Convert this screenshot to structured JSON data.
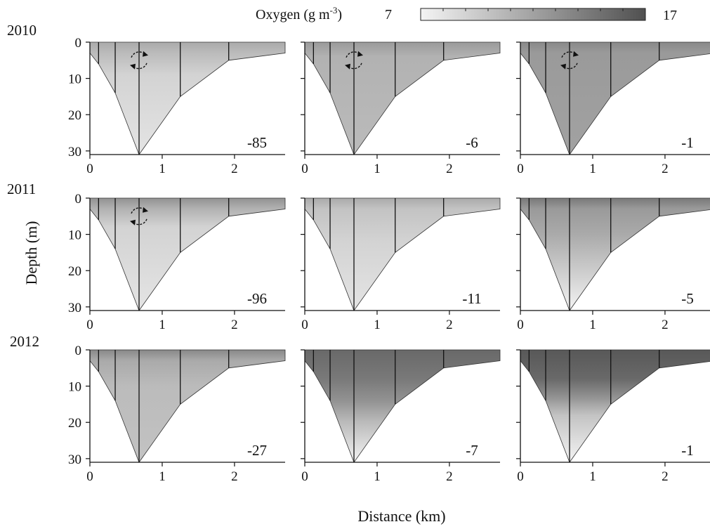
{
  "chart_data": {
    "type": "heatmap",
    "legend": {
      "title": "Oxygen (g m",
      "title_sup": "-3",
      "title_close": ")",
      "min_label": "7",
      "max_label": "17",
      "min": 7,
      "max": 17,
      "color_min": "#f4f4f4",
      "color_max": "#505050"
    },
    "xlabel": "Distance (km)",
    "ylabel": "Depth (m)",
    "xlim": [
      0,
      2.7
    ],
    "ylim": [
      0,
      31
    ],
    "x_ticks": [
      "0",
      "1",
      "2"
    ],
    "y_ticks": [
      "0",
      "10",
      "20",
      "30"
    ],
    "lake_profile": {
      "distance_km": [
        0,
        0.12,
        0.35,
        0.68,
        1.25,
        1.92,
        2.7
      ],
      "depth_m": [
        3,
        6,
        14,
        31,
        15,
        5,
        3
      ]
    },
    "years": [
      "2010",
      "2011",
      "2012"
    ],
    "panels": [
      {
        "year": "2010",
        "annotation": "-85",
        "mixing_symbol": true,
        "layers": [
          [
            0,
            11.5
          ],
          [
            3,
            10.5
          ],
          [
            9,
            9
          ],
          [
            31,
            8
          ]
        ]
      },
      {
        "year": "2010",
        "annotation": "-6",
        "mixing_symbol": true,
        "layers": [
          [
            0,
            12.5
          ],
          [
            4,
            11
          ],
          [
            31,
            10.5
          ]
        ]
      },
      {
        "year": "2010",
        "annotation": "-1",
        "mixing_symbol": true,
        "layers": [
          [
            0,
            13.5
          ],
          [
            3,
            12.5
          ],
          [
            31,
            12
          ]
        ]
      },
      {
        "year": "2011",
        "annotation": "-96",
        "mixing_symbol": true,
        "layers": [
          [
            0,
            13
          ],
          [
            3,
            11
          ],
          [
            8,
            9
          ],
          [
            31,
            8
          ]
        ]
      },
      {
        "year": "2011",
        "annotation": "-11",
        "mixing_symbol": false,
        "layers": [
          [
            0,
            11.5
          ],
          [
            3,
            10
          ],
          [
            12,
            9
          ],
          [
            31,
            8
          ]
        ]
      },
      {
        "year": "2011",
        "annotation": "-5",
        "mixing_symbol": false,
        "layers": [
          [
            0,
            14.5
          ],
          [
            3,
            12.5
          ],
          [
            10,
            11.5
          ],
          [
            22,
            9
          ],
          [
            31,
            7
          ]
        ]
      },
      {
        "year": "2012",
        "annotation": "-27",
        "mixing_symbol": false,
        "layers": [
          [
            0,
            13.5
          ],
          [
            3,
            11.5
          ],
          [
            10,
            10.5
          ],
          [
            31,
            10
          ]
        ]
      },
      {
        "year": "2012",
        "annotation": "-7",
        "mixing_symbol": false,
        "layers": [
          [
            0,
            15.5
          ],
          [
            8,
            14.5
          ],
          [
            14,
            13
          ],
          [
            20,
            10.5
          ],
          [
            31,
            7
          ]
        ]
      },
      {
        "year": "2012",
        "annotation": "-1",
        "mixing_symbol": false,
        "layers": [
          [
            0,
            16.5
          ],
          [
            8,
            15.5
          ],
          [
            13,
            13
          ],
          [
            18,
            10
          ],
          [
            31,
            7
          ]
        ]
      }
    ]
  }
}
